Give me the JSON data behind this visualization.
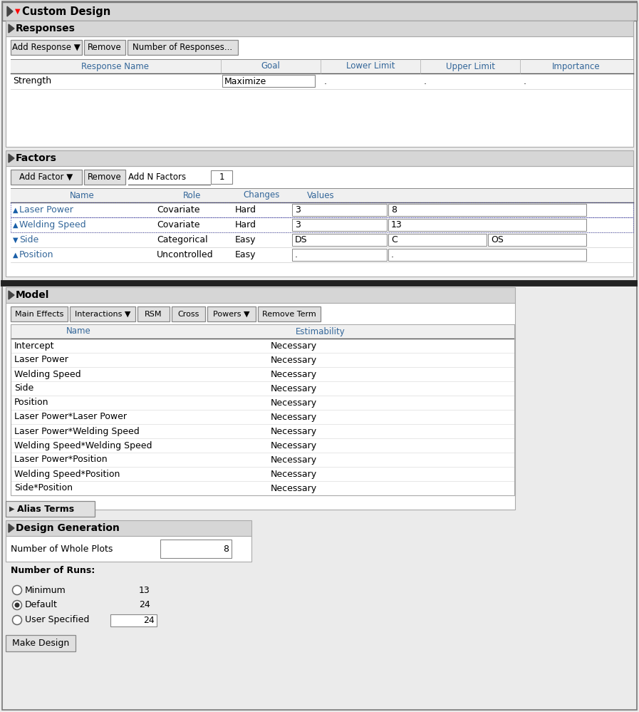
{
  "bg_color": "#ebebeb",
  "white": "#ffffff",
  "light_gray": "#d4d4d4",
  "mid_gray": "#c8c8c8",
  "border_dark": "#555555",
  "border_light": "#aaaaaa",
  "blue_text": "#336699",
  "black": "#000000",
  "title": "Custom Design",
  "responses_section": "Responses",
  "factors_section": "Factors",
  "model_section": "Model",
  "alias_section": "Alias Terms",
  "design_section": "Design Generation",
  "response_buttons": [
    "Add Response ▼",
    "Remove",
    "Number of Responses..."
  ],
  "response_headers": [
    "Response Name",
    "Goal",
    "Lower Limit",
    "Upper Limit",
    "Importance"
  ],
  "response_row": [
    "Strength",
    "Maximize",
    ".",
    ".",
    "."
  ],
  "factor_buttons_left": [
    "Add Factor ▼",
    "Remove"
  ],
  "factor_button_label": "Add N Factors",
  "factor_button_n": "1",
  "factor_headers": [
    "Name",
    "Role",
    "Changes",
    "Values"
  ],
  "factor_rows": [
    {
      "icon": "▲",
      "name": "Laser Power",
      "role": "Covariate",
      "changes": "Hard",
      "val1": "3",
      "val2": "8",
      "val3": null,
      "dotted": true
    },
    {
      "icon": "▲",
      "name": "Welding Speed",
      "role": "Covariate",
      "changes": "Hard",
      "val1": "3",
      "val2": "13",
      "val3": null,
      "dotted": true
    },
    {
      "icon": "▼",
      "name": "Side",
      "role": "Categorical",
      "changes": "Easy",
      "val1": "DS",
      "val2": "C",
      "val3": "OS",
      "dotted": false
    },
    {
      "icon": "▲",
      "name": "Position",
      "role": "Uncontrolled",
      "changes": "Easy",
      "val1": ".",
      "val2": ".",
      "val3": null,
      "dotted": false
    }
  ],
  "model_buttons": [
    "Main Effects",
    "Interactions ▼",
    "RSM",
    "Cross",
    "Powers ▼",
    "Remove Term"
  ],
  "model_headers": [
    "Name",
    "Estimability"
  ],
  "model_rows": [
    [
      "Intercept",
      "Necessary"
    ],
    [
      "Laser Power",
      "Necessary"
    ],
    [
      "Welding Speed",
      "Necessary"
    ],
    [
      "Side",
      "Necessary"
    ],
    [
      "Position",
      "Necessary"
    ],
    [
      "Laser Power*Laser Power",
      "Necessary"
    ],
    [
      "Laser Power*Welding Speed",
      "Necessary"
    ],
    [
      "Welding Speed*Welding Speed",
      "Necessary"
    ],
    [
      "Laser Power*Position",
      "Necessary"
    ],
    [
      "Welding Speed*Position",
      "Necessary"
    ],
    [
      "Side*Position",
      "Necessary"
    ]
  ],
  "whole_plots_label": "Number of Whole Plots",
  "whole_plots_value": "8",
  "runs_label": "Number of Runs:",
  "run_options": [
    {
      "label": "Minimum",
      "value": "13",
      "selected": false,
      "has_box": false
    },
    {
      "label": "Default",
      "value": "24",
      "selected": true,
      "has_box": false
    },
    {
      "label": "User Specified",
      "value": "24",
      "selected": false,
      "has_box": true
    }
  ],
  "make_design_button": "Make Design"
}
